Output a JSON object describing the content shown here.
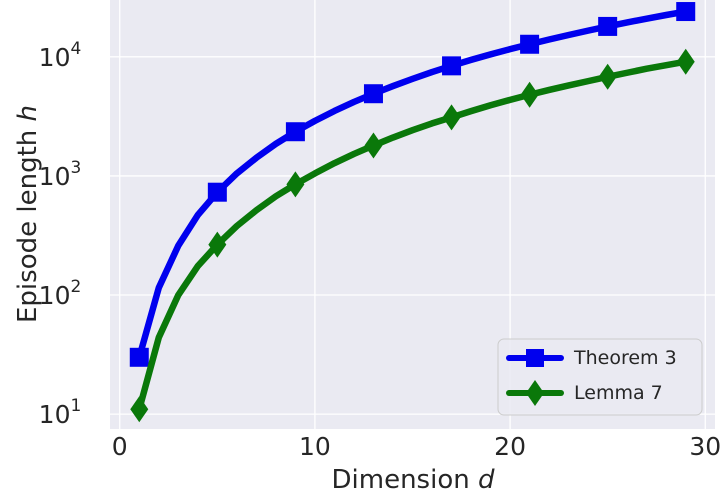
{
  "chart_data": {
    "type": "line",
    "xlabel": "Dimension",
    "xlabel_var": "d",
    "ylabel": "Episode length",
    "ylabel_var": "h",
    "xlim": [
      -0.5,
      30.5
    ],
    "ylim": [
      7.5,
      30000
    ],
    "yscale": "log",
    "grid": true,
    "legend_position": "bottom-right",
    "x_ticks": [
      0,
      10,
      20,
      30
    ],
    "y_ticks": [
      {
        "value": 10,
        "base": "10",
        "exp": "1"
      },
      {
        "value": 100,
        "base": "10",
        "exp": "2"
      },
      {
        "value": 1000,
        "base": "10",
        "exp": "3"
      },
      {
        "value": 10000,
        "base": "10",
        "exp": "4"
      }
    ],
    "x": [
      1,
      2,
      3,
      4,
      5,
      6,
      7,
      8,
      9,
      10,
      11,
      12,
      13,
      14,
      15,
      16,
      17,
      18,
      19,
      20,
      21,
      22,
      23,
      24,
      25,
      26,
      27,
      28,
      29
    ],
    "series": [
      {
        "name": "Theorem 3",
        "color": "#0000ee",
        "marker": "square",
        "marker_every": [
          1,
          5,
          9,
          13,
          17,
          21,
          25,
          29
        ],
        "values": [
          30,
          115,
          260,
          470,
          730,
          1050,
          1420,
          1860,
          2350,
          2900,
          3510,
          4180,
          4900,
          5680,
          6530,
          7450,
          8400,
          9420,
          10480,
          11600,
          12750,
          13980,
          15250,
          16600,
          18000,
          19450,
          20900,
          22450,
          24000
        ]
      },
      {
        "name": "Lemma 7",
        "color": "#0a780a",
        "marker": "diamond",
        "marker_every": [
          1,
          5,
          9,
          13,
          17,
          21,
          25,
          29
        ],
        "values": [
          11,
          44,
          100,
          175,
          265,
          380,
          515,
          675,
          850,
          1050,
          1280,
          1530,
          1800,
          2100,
          2420,
          2760,
          3100,
          3500,
          3920,
          4350,
          4800,
          5270,
          5750,
          6250,
          6800,
          7350,
          7950,
          8500,
          9100
        ]
      }
    ]
  }
}
